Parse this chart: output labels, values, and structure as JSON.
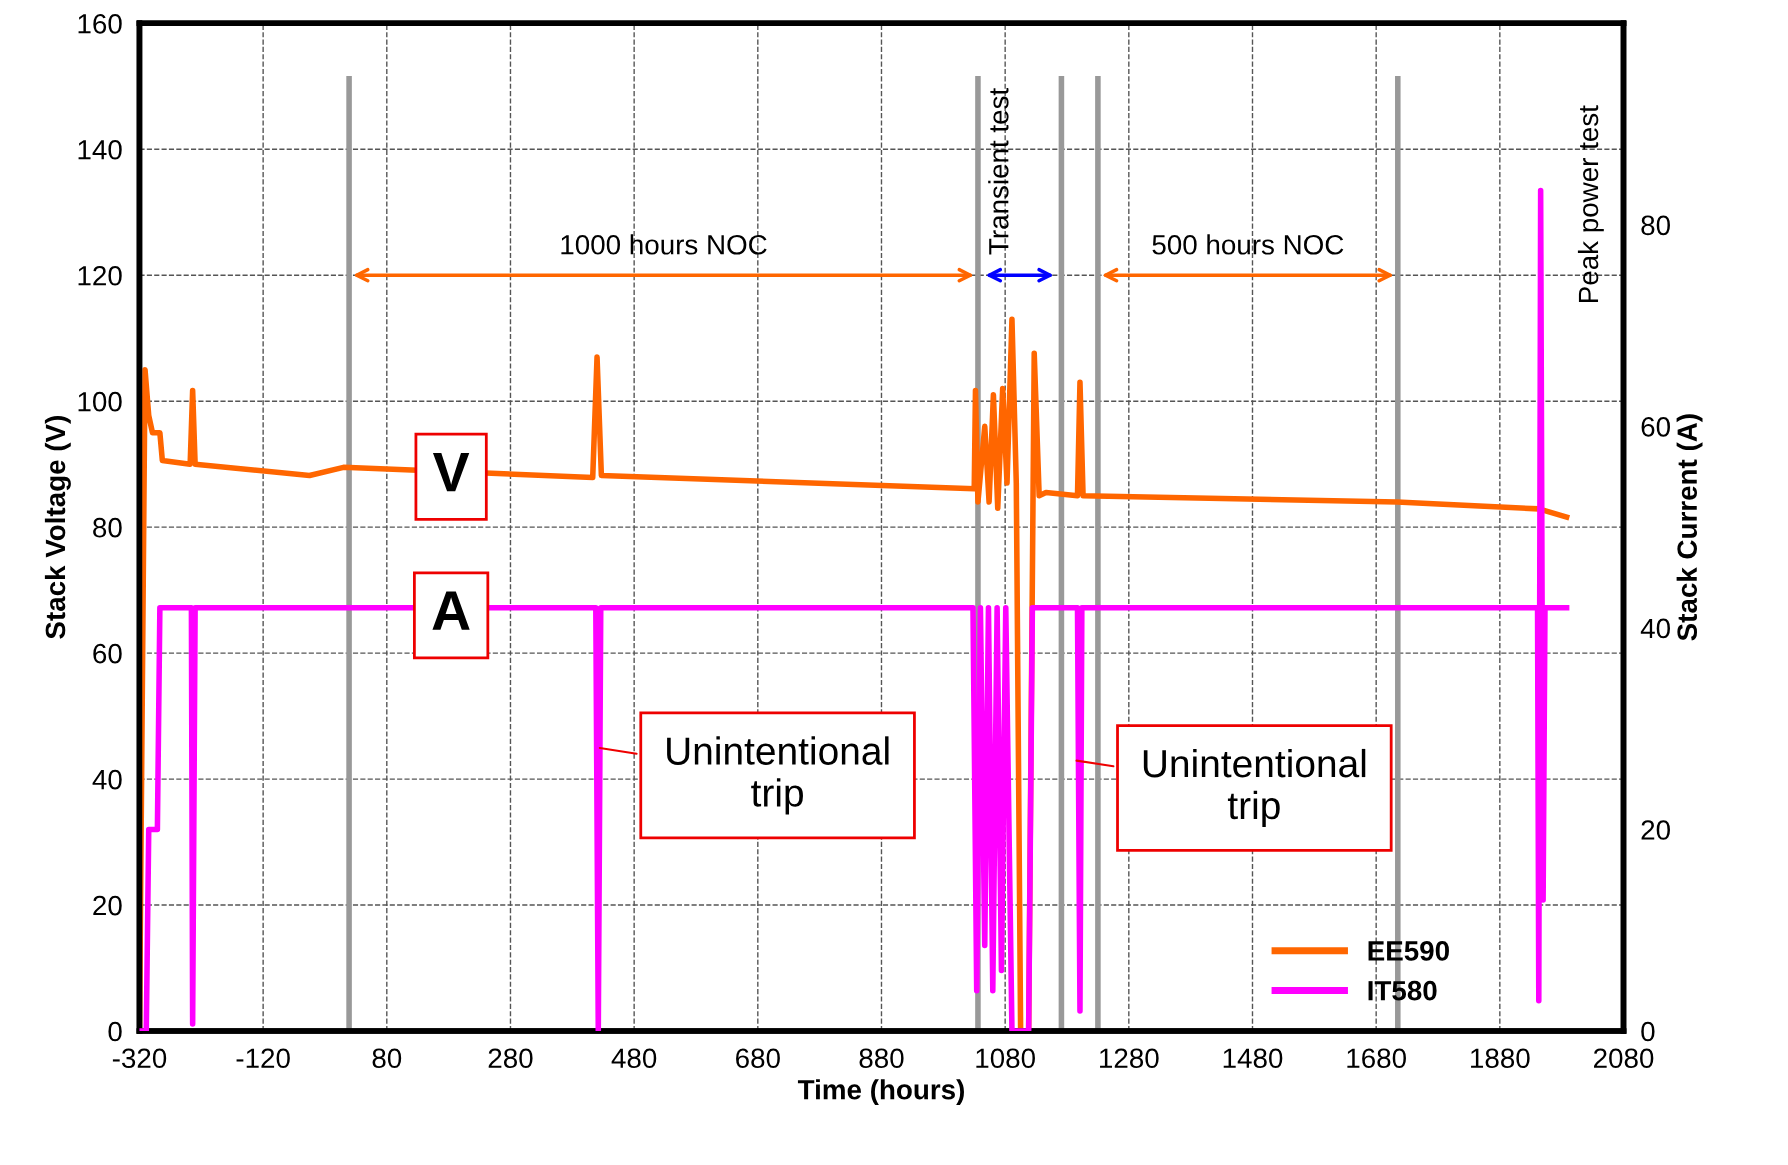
{
  "chart_data": {
    "type": "line",
    "xlabel": "Time (hours)",
    "ylabel": "Stack Voltage (V)",
    "y2label": "Stack Current (A)",
    "xlim": [
      -320,
      2080
    ],
    "xticks": [
      -320,
      -120,
      80,
      280,
      480,
      680,
      880,
      1080,
      1280,
      1480,
      1680,
      1880,
      2080
    ],
    "ylim": [
      0,
      160
    ],
    "yticks": [
      0,
      20,
      40,
      60,
      80,
      100,
      120,
      140,
      160
    ],
    "y2lim": [
      0,
      100
    ],
    "y2ticks": [
      0,
      20,
      40,
      60,
      80
    ],
    "grid": true,
    "legend": "bottom right",
    "line_style": "solid",
    "marker": "none",
    "series": [
      {
        "name": "EE590",
        "color": "#ff6600",
        "x": [
          -320,
          -311,
          -305,
          -299,
          -287,
          -283,
          -238,
          -234,
          -230,
          -45,
          10,
          413,
          420,
          427,
          1030,
          1032,
          1036,
          1047,
          1054,
          1061,
          1068,
          1076,
          1083,
          1091,
          1098,
          1105,
          1118,
          1127,
          1135,
          1146,
          1197,
          1201,
          1206,
          1714,
          1943,
          1988
        ],
        "values": [
          0,
          105,
          97.7,
          95,
          95,
          90.6,
          90,
          101.7,
          90,
          88.2,
          89.5,
          87.9,
          107,
          88.2,
          86.1,
          101.7,
          84,
          96,
          84,
          101,
          83,
          102,
          87,
          113,
          87,
          0,
          0,
          107.6,
          85,
          85.5,
          85,
          103,
          85,
          84,
          82.9,
          81.6
        ]
      },
      {
        "name": "IT580",
        "color": "#ff00ff",
        "axis": "y2",
        "x": [
          -320,
          -309,
          -305,
          -291,
          -287,
          -236,
          -234,
          -230,
          418,
          422,
          426,
          1028,
          1034,
          1040,
          1047,
          1053,
          1060,
          1067,
          1074,
          1081,
          1091,
          1118,
          1124,
          1197,
          1201,
          1204,
          1941,
          1943,
          1946,
          1950,
          1953,
          1988
        ],
        "values": [
          0,
          0,
          20,
          20,
          42,
          42,
          0.7,
          42,
          42,
          0,
          42,
          42,
          4,
          42,
          8.5,
          42,
          4,
          42,
          6,
          42,
          0,
          0,
          42,
          42,
          2,
          42,
          42,
          3,
          83.4,
          13,
          42,
          42
        ]
      }
    ],
    "ref_lines": [
      {
        "axis": "x",
        "value": 19,
        "color": "#999999"
      },
      {
        "axis": "x",
        "value": 1036,
        "color": "#999999"
      },
      {
        "axis": "x",
        "value": 1171,
        "color": "#999999"
      },
      {
        "axis": "x",
        "value": 1230,
        "color": "#999999"
      },
      {
        "axis": "x",
        "value": 1715,
        "color": "#999999"
      }
    ],
    "annotations": [
      "1000 hours NOC",
      "Transient test",
      "500 hours NOC",
      "Peak power test",
      {
        "text": "V",
        "x": 184,
        "y": 88
      },
      {
        "text": "A",
        "x": 184,
        "y": 66
      },
      {
        "text": "Unintentional\ntrip",
        "x": 420,
        "y": 45
      },
      {
        "text": "Unintentional\ntrip",
        "x": 1191,
        "y": 43
      }
    ]
  }
}
